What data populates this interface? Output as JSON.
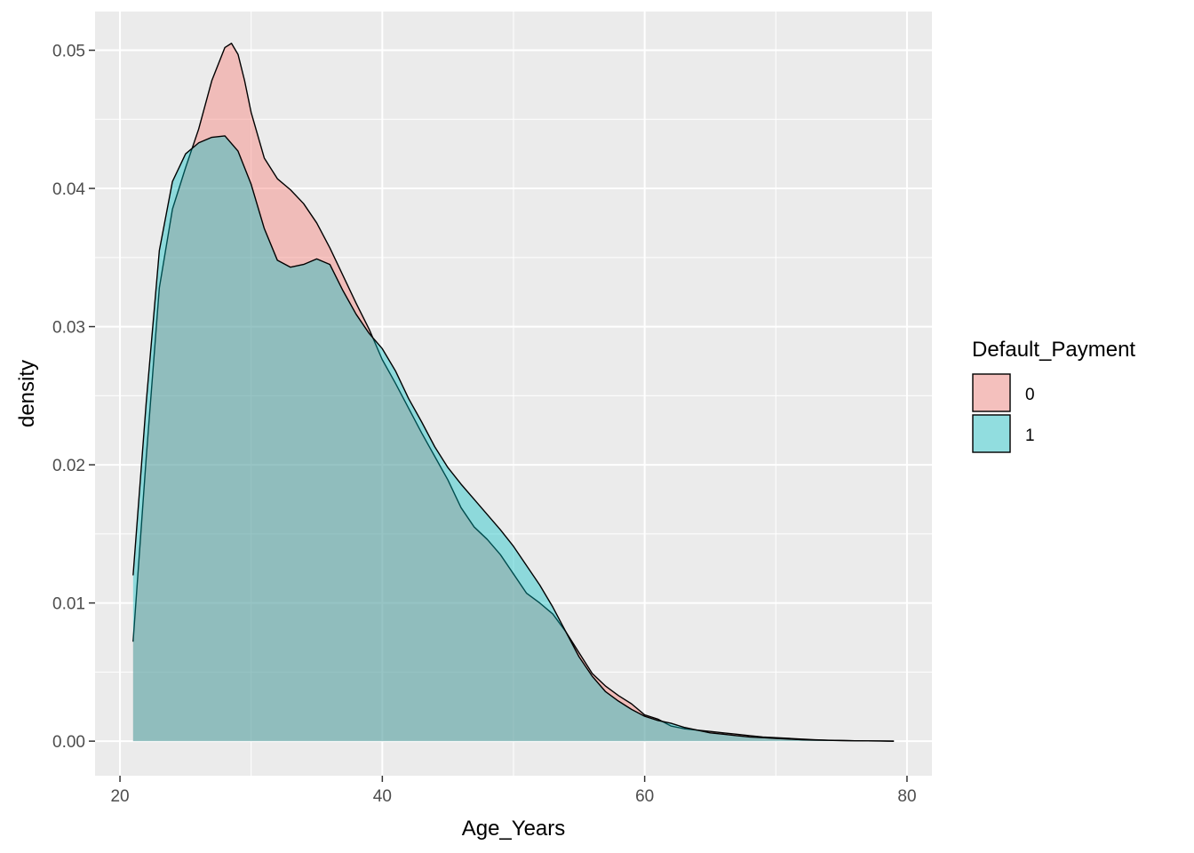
{
  "chart_data": {
    "type": "area",
    "subtype": "density",
    "xlabel": "Age_Years",
    "ylabel": "density",
    "xlim": [
      18.1,
      81.9
    ],
    "ylim": [
      -0.0025,
      0.0528
    ],
    "x_ticks": [
      20,
      40,
      60,
      80
    ],
    "x_tick_labels": [
      "20",
      "40",
      "60",
      "80"
    ],
    "y_ticks": [
      0.0,
      0.01,
      0.02,
      0.03,
      0.04,
      0.05
    ],
    "y_tick_labels": [
      "0.00",
      "0.01",
      "0.02",
      "0.03",
      "0.04",
      "0.05"
    ],
    "grid": true,
    "background": "#EBEBEB",
    "legend": {
      "title": "Default_Payment",
      "placement": "right",
      "entries": [
        "0",
        "1"
      ]
    },
    "series": [
      {
        "name": "0",
        "color": "#F8766D",
        "x": [
          21,
          22,
          23,
          24,
          25,
          26,
          27,
          28,
          28.5,
          29,
          29.5,
          30,
          31,
          32,
          33,
          34,
          35,
          36,
          37,
          38,
          39,
          40,
          41,
          42,
          43,
          44,
          45,
          46,
          47,
          48,
          49,
          50,
          51,
          52,
          53,
          54,
          55,
          56,
          57,
          58,
          59,
          60,
          61,
          62,
          63,
          64,
          65,
          66,
          67,
          68,
          69,
          70,
          71,
          72,
          73,
          74,
          75,
          76,
          77,
          78,
          79
        ],
        "y": [
          0.0072,
          0.0205,
          0.0328,
          0.0385,
          0.0415,
          0.0443,
          0.0478,
          0.0502,
          0.0505,
          0.0497,
          0.0478,
          0.0455,
          0.0422,
          0.0407,
          0.0399,
          0.0389,
          0.0375,
          0.0357,
          0.0337,
          0.0317,
          0.0298,
          0.0276,
          0.0259,
          0.0241,
          0.0223,
          0.0206,
          0.0189,
          0.0169,
          0.0155,
          0.0146,
          0.0135,
          0.0121,
          0.0107,
          0.01,
          0.0092,
          0.0079,
          0.0064,
          0.0049,
          0.004,
          0.0033,
          0.0027,
          0.0019,
          0.0016,
          0.0011,
          0.0009,
          0.0008,
          0.0007,
          0.0006,
          0.0005,
          0.0004,
          0.0003,
          0.00025,
          0.0002,
          0.00015,
          0.0001,
          7e-05,
          5e-05,
          3e-05,
          2e-05,
          1e-05,
          0.0
        ]
      },
      {
        "name": "1",
        "color": "#00BFC4",
        "x": [
          21,
          22,
          23,
          24,
          25,
          26,
          27,
          28,
          29,
          30,
          31,
          32,
          33,
          34,
          35,
          36,
          37,
          38,
          39,
          40,
          41,
          42,
          43,
          44,
          45,
          46,
          47,
          48,
          49,
          50,
          51,
          52,
          53,
          54,
          55,
          56,
          57,
          58,
          59,
          60,
          61,
          62,
          63,
          64,
          65,
          66,
          67,
          68,
          69,
          70,
          71,
          72,
          73,
          74,
          75,
          76,
          77,
          78,
          79
        ],
        "y": [
          0.012,
          0.0245,
          0.0355,
          0.0405,
          0.0425,
          0.0433,
          0.0437,
          0.0438,
          0.0427,
          0.0403,
          0.0371,
          0.0348,
          0.0343,
          0.0345,
          0.0349,
          0.0345,
          0.0326,
          0.0309,
          0.0295,
          0.0284,
          0.0268,
          0.0248,
          0.0231,
          0.0213,
          0.0198,
          0.0186,
          0.0175,
          0.0164,
          0.0153,
          0.0141,
          0.0127,
          0.0113,
          0.0097,
          0.0079,
          0.0061,
          0.0047,
          0.0036,
          0.0029,
          0.0023,
          0.0018,
          0.0015,
          0.0013,
          0.001,
          0.0008,
          0.0006,
          0.0005,
          0.0004,
          0.0003,
          0.00025,
          0.0002,
          0.00015,
          0.0001,
          8e-05,
          6e-05,
          4e-05,
          3e-05,
          2e-05,
          1e-05,
          0.0
        ]
      }
    ]
  }
}
